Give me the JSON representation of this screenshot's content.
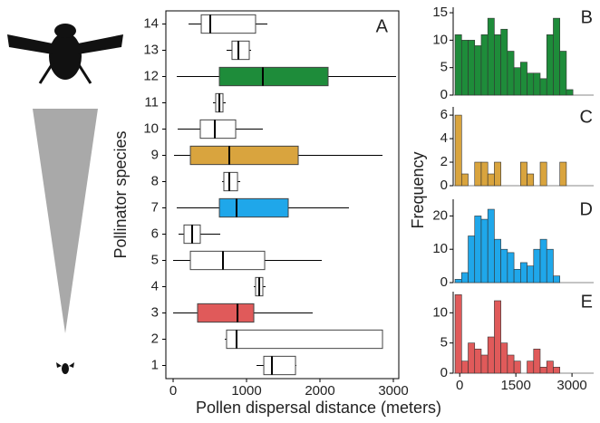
{
  "chart_data": [
    {
      "type": "box",
      "panel": "A",
      "x_label": "Pollen dispersal distance (meters)",
      "y_label": "Pollinator species",
      "categories": [
        "1",
        "2",
        "3",
        "4",
        "5",
        "6",
        "7",
        "8",
        "9",
        "10",
        "11",
        "12",
        "13",
        "14"
      ],
      "whislo": [
        1136,
        704,
        0,
        1099,
        0,
        74,
        49,
        667,
        12,
        62,
        543,
        50,
        728,
        210
      ],
      "q1": [
        1235,
        728,
        333,
        1123,
        235,
        148,
        630,
        691,
        235,
        370,
        580,
        630,
        802,
        383
      ],
      "med": [
        1346,
        864,
        877,
        1173,
        679,
        259,
        864,
        765,
        765,
        568,
        630,
        1222,
        889,
        506
      ],
      "q3": [
        1667,
        2852,
        1099,
        1222,
        1247,
        370,
        1568,
        877,
        1704,
        852,
        679,
        2111,
        1037,
        1123
      ],
      "whishi": [
        1679,
        2852,
        1901,
        1259,
        2025,
        642,
        2395,
        914,
        2852,
        1222,
        716,
        3037,
        1062,
        1284
      ],
      "colors": [
        "#ffffff",
        "#ffffff",
        "#e05a5a",
        "#ffffff",
        "#ffffff",
        "#ffffff",
        "#1fa7ea",
        "#ffffff",
        "#d9a43e",
        "#ffffff",
        "#ffffff",
        "#1e8c3a",
        "#ffffff",
        "#ffffff"
      ],
      "xlim": [
        -99,
        3074
      ],
      "xticks": [
        0,
        1000,
        2000,
        3000
      ]
    },
    {
      "type": "histogram",
      "panel": "B",
      "color": "#1e8c3a",
      "y_label": "Frequency",
      "bins": [
        -125,
        50,
        225,
        400,
        575,
        750,
        925,
        1100,
        1275,
        1450,
        1625,
        1800,
        1975,
        2150,
        2325,
        2500,
        2675,
        2850,
        3025
      ],
      "values": [
        11,
        10,
        10,
        9,
        11,
        14,
        11,
        12,
        8,
        5,
        6,
        4,
        4,
        3,
        11,
        14,
        8,
        1
      ],
      "xlim": [
        -175,
        3700
      ],
      "ylim": [
        0,
        16
      ],
      "yticks": [
        0,
        5,
        10,
        15
      ]
    },
    {
      "type": "histogram",
      "panel": "C",
      "color": "#d9a43e",
      "bins": [
        -125,
        50,
        225,
        400,
        575,
        750,
        925,
        1100,
        1275,
        1450,
        1625,
        1800,
        1975,
        2150,
        2325,
        2500,
        2675,
        2850,
        3025
      ],
      "values": [
        6,
        1,
        0,
        2,
        2,
        1,
        2,
        0,
        0,
        0,
        2,
        1,
        0,
        2,
        0,
        0,
        2,
        0
      ],
      "xlim": [
        -175,
        3700
      ],
      "ylim": [
        0,
        6.7
      ],
      "yticks": [
        0,
        2,
        4,
        6
      ]
    },
    {
      "type": "histogram",
      "panel": "D",
      "color": "#1fa7ea",
      "bins": [
        -125,
        50,
        225,
        400,
        575,
        750,
        925,
        1100,
        1275,
        1450,
        1625,
        1800,
        1975,
        2150,
        2325,
        2500,
        2675,
        2850,
        3025
      ],
      "values": [
        1,
        3,
        14,
        20,
        19,
        22,
        13,
        10,
        9,
        4,
        6,
        5,
        10,
        13,
        10,
        2,
        0,
        0
      ],
      "xlim": [
        -175,
        3700
      ],
      "ylim": [
        0,
        25
      ],
      "yticks": [
        0,
        10,
        20
      ]
    },
    {
      "type": "histogram",
      "panel": "E",
      "color": "#e05a5a",
      "bins": [
        -125,
        50,
        225,
        400,
        575,
        750,
        925,
        1100,
        1275,
        1450,
        1625,
        1800,
        1975,
        2150,
        2325,
        2500,
        2675,
        2850,
        3025
      ],
      "values": [
        13,
        2,
        5,
        4,
        3,
        6,
        12,
        5,
        3,
        2,
        0,
        2,
        4,
        1,
        2,
        1,
        0,
        0
      ],
      "xlim": [
        -175,
        3700
      ],
      "ylim": [
        0,
        13.5
      ],
      "yticks": [
        0,
        5,
        10
      ],
      "xticks": [
        0,
        1500,
        3000
      ]
    }
  ]
}
